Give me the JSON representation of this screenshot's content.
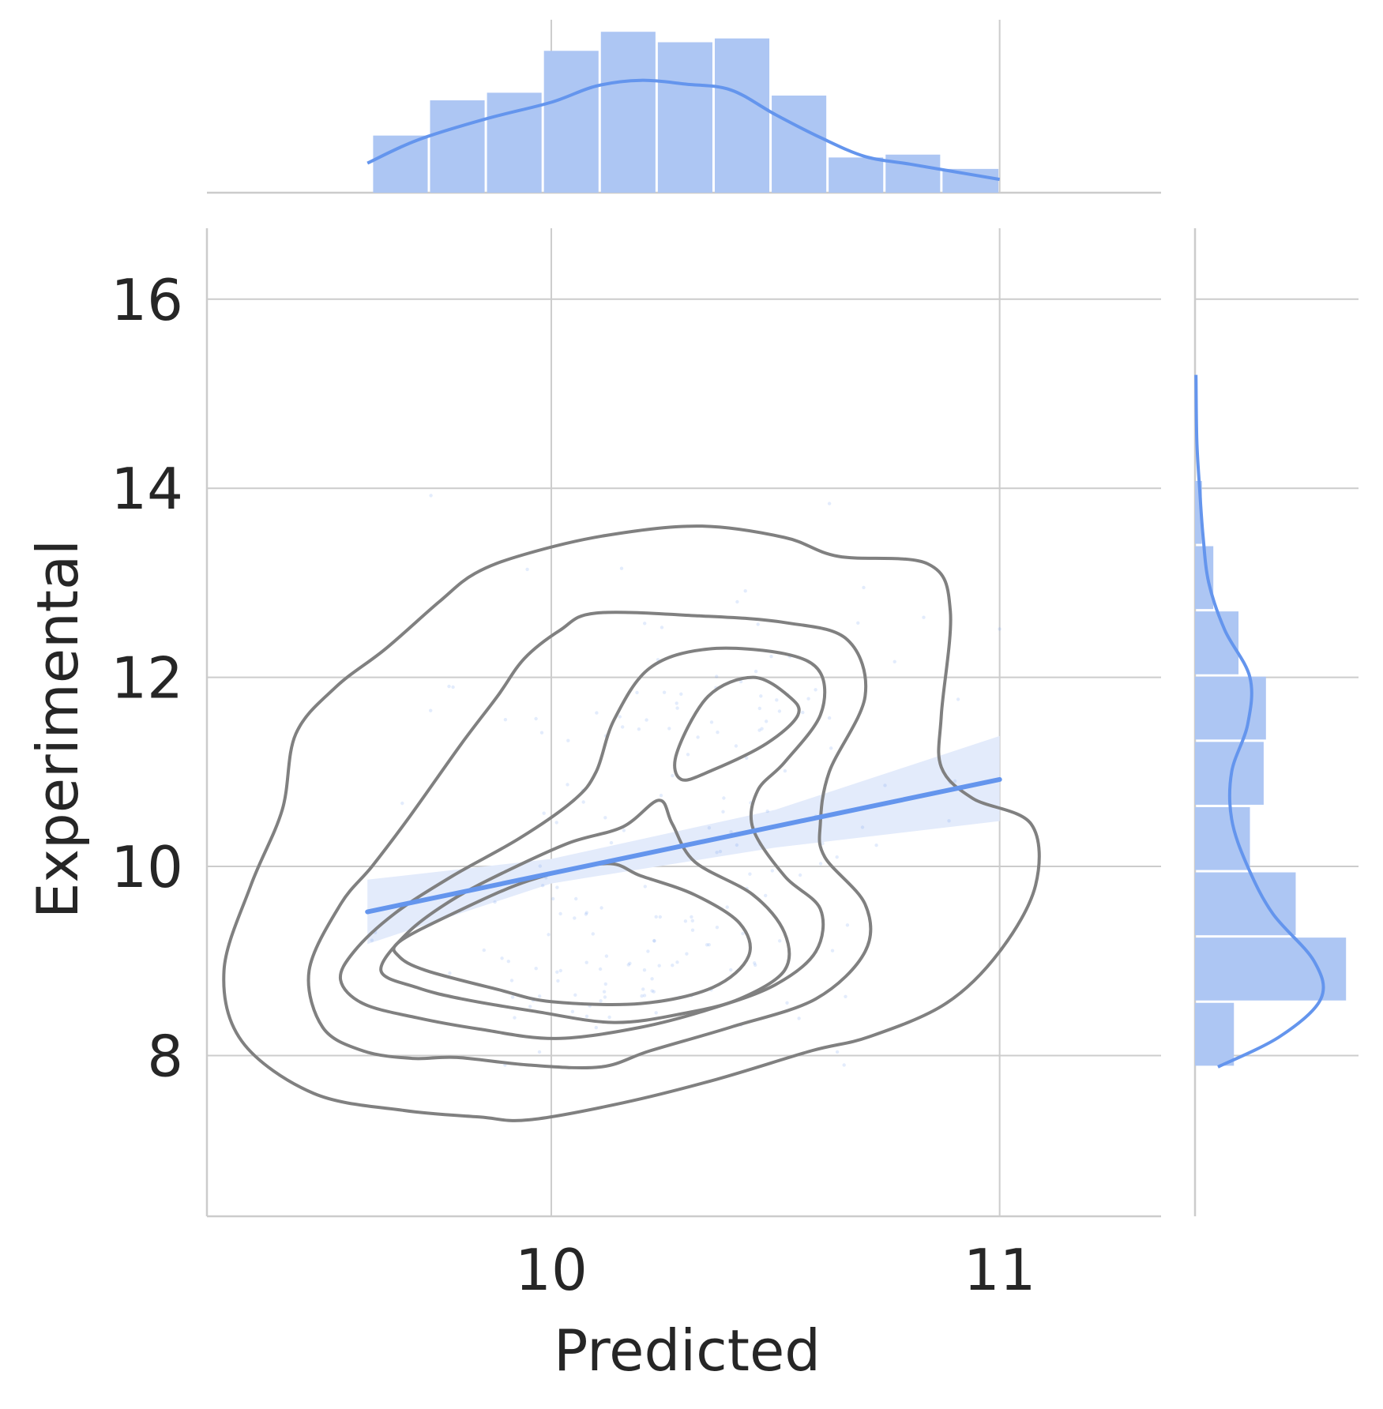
{
  "chart_data": {
    "type": "scatter",
    "kind": "jointplot",
    "xlabel": "Predicted",
    "ylabel": "Experimental",
    "xlim": [
      9.232,
      11.36
    ],
    "ylim": [
      6.3,
      16.75
    ],
    "xticks": [
      10,
      11
    ],
    "yticks": [
      8,
      10,
      12,
      14,
      16
    ],
    "grid": true,
    "colors": {
      "accent": "#6495ed",
      "hist_fill": "#adc6f3",
      "ci_band": "#e3ebfb",
      "contour": "#808080",
      "grid": "#cccccc",
      "axis": "#cccccc",
      "text": "#262626"
    },
    "regression": {
      "x_range": [
        9.59,
        11.0
      ],
      "y_at_x_range": [
        9.52,
        10.92
      ],
      "ci": [
        {
          "x": 9.59,
          "lower": 9.18,
          "upper": 9.86
        },
        {
          "x": 10.0,
          "lower": 9.82,
          "upper": 10.08
        },
        {
          "x": 10.5,
          "lower": 10.2,
          "upper": 10.6
        },
        {
          "x": 11.0,
          "lower": 10.48,
          "upper": 11.38
        }
      ]
    },
    "contour_levels": [
      {
        "points": [
          [
            9.94,
            13.3
          ],
          [
            10.12,
            13.5
          ],
          [
            10.33,
            13.6
          ],
          [
            10.52,
            13.48
          ],
          [
            10.64,
            13.28
          ],
          [
            10.84,
            13.2
          ],
          [
            10.89,
            12.7
          ],
          [
            10.87,
            11.6
          ],
          [
            10.87,
            11.05
          ],
          [
            10.94,
            10.72
          ],
          [
            11.07,
            10.45
          ],
          [
            11.08,
            9.8
          ],
          [
            11.0,
            9.1
          ],
          [
            10.88,
            8.55
          ],
          [
            10.71,
            8.2
          ],
          [
            10.58,
            8.05
          ],
          [
            10.37,
            7.75
          ],
          [
            10.16,
            7.5
          ],
          [
            9.95,
            7.32
          ],
          [
            9.84,
            7.35
          ],
          [
            9.67,
            7.42
          ],
          [
            9.47,
            7.6
          ],
          [
            9.31,
            8.15
          ],
          [
            9.27,
            8.9
          ],
          [
            9.33,
            9.8
          ],
          [
            9.4,
            10.6
          ],
          [
            9.43,
            11.4
          ],
          [
            9.52,
            11.9
          ],
          [
            9.63,
            12.3
          ],
          [
            9.75,
            12.8
          ],
          [
            9.83,
            13.1
          ]
        ]
      },
      {
        "points": [
          [
            10.1,
            12.68
          ],
          [
            10.33,
            12.65
          ],
          [
            10.52,
            12.58
          ],
          [
            10.66,
            12.4
          ],
          [
            10.7,
            11.8
          ],
          [
            10.62,
            11.0
          ],
          [
            10.6,
            10.45
          ],
          [
            10.61,
            10.1
          ],
          [
            10.7,
            9.6
          ],
          [
            10.7,
            9.1
          ],
          [
            10.59,
            8.6
          ],
          [
            10.4,
            8.3
          ],
          [
            10.22,
            8.05
          ],
          [
            10.11,
            7.88
          ],
          [
            9.95,
            7.9
          ],
          [
            9.79,
            7.98
          ],
          [
            9.69,
            7.97
          ],
          [
            9.58,
            8.05
          ],
          [
            9.49,
            8.3
          ],
          [
            9.46,
            8.9
          ],
          [
            9.53,
            9.6
          ],
          [
            9.6,
            10.0
          ],
          [
            9.68,
            10.5
          ],
          [
            9.8,
            11.3
          ],
          [
            9.88,
            11.8
          ],
          [
            9.94,
            12.2
          ],
          [
            10.02,
            12.5
          ]
        ]
      },
      {
        "points": [
          [
            10.22,
            12.1
          ],
          [
            10.35,
            12.3
          ],
          [
            10.52,
            12.25
          ],
          [
            10.6,
            12.05
          ],
          [
            10.6,
            11.6
          ],
          [
            10.52,
            11.1
          ],
          [
            10.46,
            10.8
          ],
          [
            10.45,
            10.4
          ],
          [
            10.52,
            9.9
          ],
          [
            10.6,
            9.55
          ],
          [
            10.59,
            9.1
          ],
          [
            10.5,
            8.75
          ],
          [
            10.36,
            8.5
          ],
          [
            10.2,
            8.3
          ],
          [
            10.01,
            8.18
          ],
          [
            9.84,
            8.28
          ],
          [
            9.7,
            8.4
          ],
          [
            9.58,
            8.55
          ],
          [
            9.53,
            8.8
          ],
          [
            9.56,
            9.1
          ],
          [
            9.65,
            9.5
          ],
          [
            9.78,
            9.9
          ],
          [
            9.93,
            10.3
          ],
          [
            10.05,
            10.7
          ],
          [
            10.1,
            11.0
          ],
          [
            10.14,
            11.55
          ]
        ]
      },
      {
        "points": [
          [
            9.62,
            8.9
          ],
          [
            9.68,
            9.3
          ],
          [
            9.78,
            9.65
          ],
          [
            9.9,
            9.95
          ],
          [
            10.04,
            10.25
          ],
          [
            10.16,
            10.42
          ],
          [
            10.24,
            10.7
          ],
          [
            10.27,
            10.45
          ],
          [
            10.32,
            10.05
          ],
          [
            10.45,
            9.7
          ],
          [
            10.52,
            9.3
          ],
          [
            10.52,
            8.9
          ],
          [
            10.42,
            8.6
          ],
          [
            10.3,
            8.45
          ],
          [
            10.14,
            8.35
          ],
          [
            9.96,
            8.47
          ],
          [
            9.8,
            8.6
          ],
          [
            9.7,
            8.72
          ]
        ]
      },
      {
        "points": [
          [
            9.66,
            9.2
          ],
          [
            9.78,
            9.5
          ],
          [
            9.95,
            9.85
          ],
          [
            10.12,
            10.03
          ],
          [
            10.2,
            9.9
          ],
          [
            10.32,
            9.7
          ],
          [
            10.42,
            9.4
          ],
          [
            10.44,
            9.05
          ],
          [
            10.36,
            8.72
          ],
          [
            10.2,
            8.55
          ],
          [
            10.0,
            8.57
          ],
          [
            9.88,
            8.7
          ],
          [
            9.72,
            8.9
          ],
          [
            9.66,
            9.05
          ]
        ]
      },
      {
        "points": [
          [
            10.28,
            11.2
          ],
          [
            10.35,
            11.8
          ],
          [
            10.45,
            12.0
          ],
          [
            10.53,
            11.8
          ],
          [
            10.55,
            11.6
          ],
          [
            10.48,
            11.3
          ],
          [
            10.36,
            11.02
          ],
          [
            10.29,
            10.92
          ]
        ]
      }
    ],
    "marginal_x": {
      "bins": [
        9.6,
        9.727,
        9.854,
        9.981,
        10.108,
        10.235,
        10.362,
        10.489,
        10.616,
        10.743,
        10.87,
        11.0
      ],
      "heights": [
        0.6,
        0.97,
        1.05,
        1.49,
        1.69,
        1.58,
        1.62,
        1.02,
        0.37,
        0.4,
        0.25
      ],
      "kde": [
        [
          9.59,
          0.31
        ],
        [
          9.7,
          0.55
        ],
        [
          9.85,
          0.77
        ],
        [
          10.0,
          0.95
        ],
        [
          10.1,
          1.12
        ],
        [
          10.2,
          1.18
        ],
        [
          10.3,
          1.14
        ],
        [
          10.4,
          1.08
        ],
        [
          10.5,
          0.82
        ],
        [
          10.6,
          0.58
        ],
        [
          10.7,
          0.38
        ],
        [
          10.8,
          0.3
        ],
        [
          10.9,
          0.22
        ],
        [
          11.0,
          0.14
        ]
      ]
    },
    "marginal_y": {
      "bins": [
        7.88,
        8.57,
        9.26,
        9.95,
        10.64,
        11.33,
        12.02,
        12.71,
        13.4,
        14.09,
        14.78,
        15.17
      ],
      "widths": [
        0.17,
        0.66,
        0.44,
        0.24,
        0.3,
        0.31,
        0.19,
        0.08,
        0.03,
        0.0,
        0.0
      ],
      "kde": [
        [
          7.88,
          0.1
        ],
        [
          8.2,
          0.37
        ],
        [
          8.6,
          0.55
        ],
        [
          9.0,
          0.52
        ],
        [
          9.5,
          0.34
        ],
        [
          10.0,
          0.23
        ],
        [
          10.5,
          0.16
        ],
        [
          11.0,
          0.16
        ],
        [
          11.5,
          0.23
        ],
        [
          12.0,
          0.24
        ],
        [
          12.5,
          0.13
        ],
        [
          13.0,
          0.06
        ],
        [
          13.5,
          0.035
        ],
        [
          14.0,
          0.02
        ],
        [
          14.5,
          0.008
        ],
        [
          15.2,
          0.004
        ]
      ]
    },
    "points_sample_count": 190
  }
}
